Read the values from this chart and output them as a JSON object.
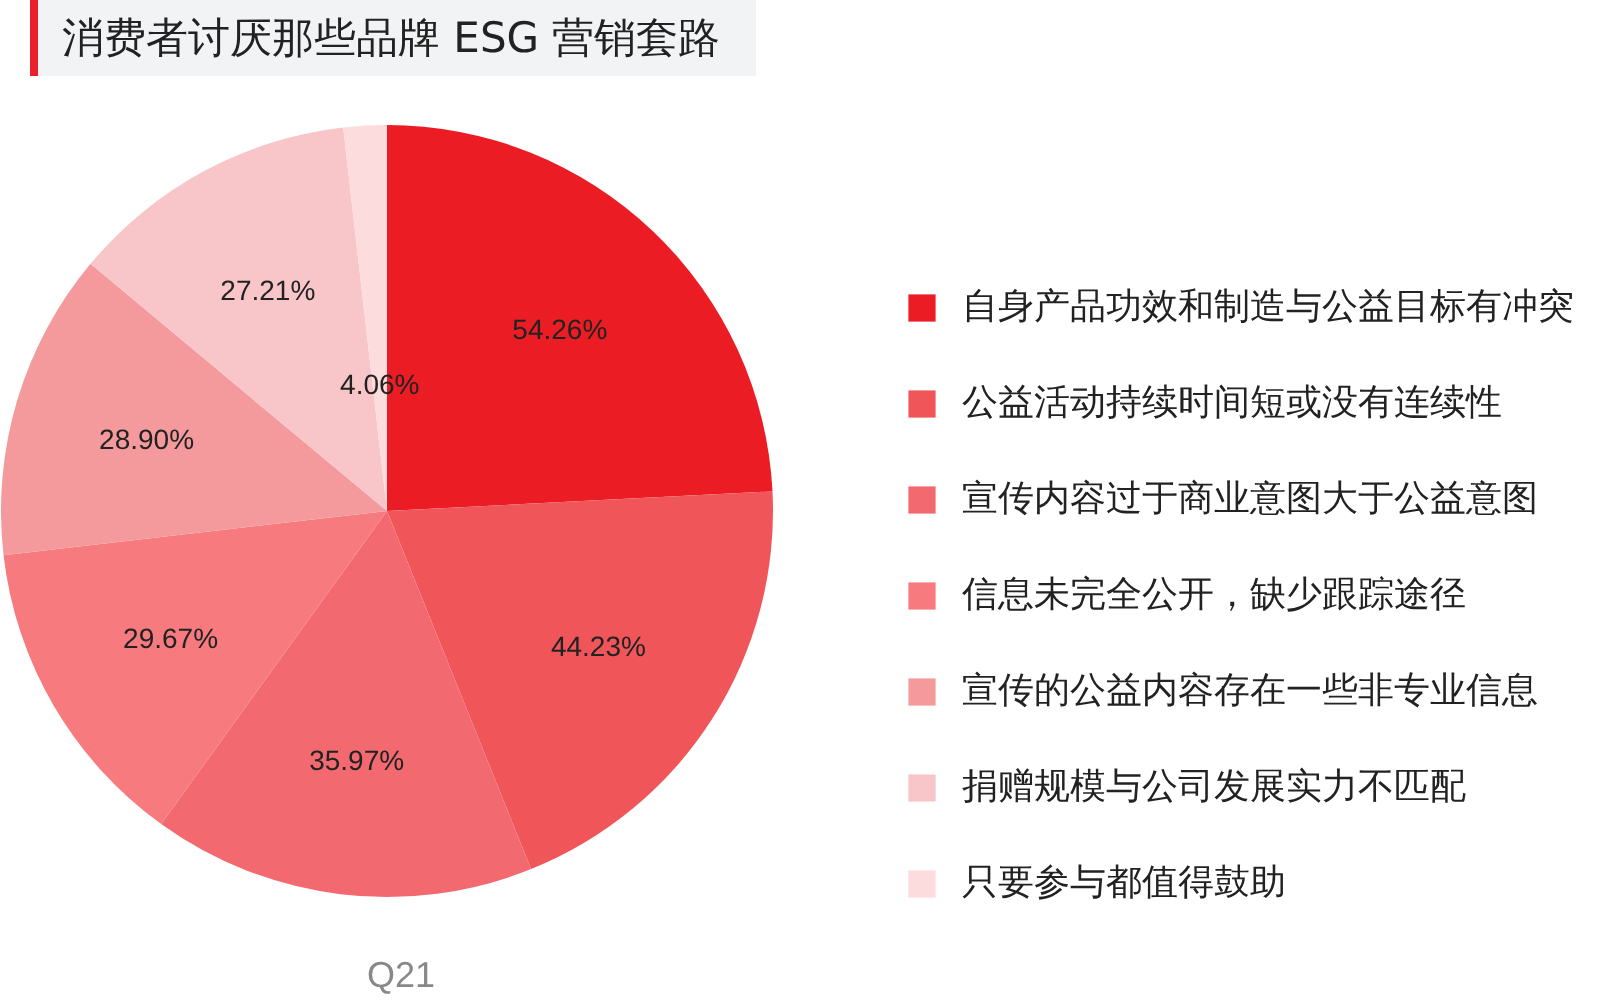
{
  "chart_data": {
    "type": "pie",
    "title": "消费者讨厌那些品牌 ESG 营销套路",
    "categories": [
      "自身产品功效和制造与公益目标有冲突",
      "公益活动持续时间短或没有连续性",
      "宣传内容过于商业意图大于公益意图",
      "信息未完全公开，缺少跟踪途径",
      "宣传的公益内容存在一些非专业信息",
      "捐赠规模与公司发展实力不匹配",
      "只要参与都值得鼓助"
    ],
    "values": [
      54.26,
      44.23,
      35.97,
      29.67,
      28.9,
      27.21,
      4.06
    ],
    "value_labels": [
      "54.26%",
      "44.23%",
      "35.97%",
      "29.67%",
      "28.90%",
      "27.21%",
      "4.06%"
    ],
    "colors": [
      "#ec1c24",
      "#f0555a",
      "#f26a70",
      "#f67a7e",
      "#f4999c",
      "#f8c5c8",
      "#fddcdd"
    ],
    "legend": "right",
    "annotations": [
      "Q21"
    ]
  }
}
